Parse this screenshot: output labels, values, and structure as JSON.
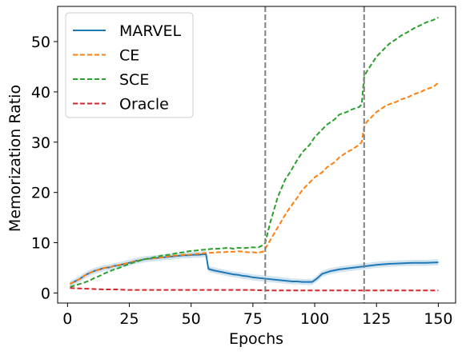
{
  "chart_data": {
    "type": "line",
    "xlabel": "Epochs",
    "ylabel": "Memorization Ratio",
    "xlim": [
      -4,
      157
    ],
    "ylim": [
      -2,
      57
    ],
    "xticks": [
      0,
      25,
      50,
      75,
      100,
      125,
      150
    ],
    "yticks": [
      0,
      10,
      20,
      30,
      40,
      50
    ],
    "grid": false,
    "legend_position": "top-left",
    "vlines": [
      80,
      120
    ],
    "series": [
      {
        "name": "MARVEL",
        "style": "solid",
        "color": "#1f77b4",
        "band": 0.6,
        "x": [
          1,
          3,
          5,
          7,
          9,
          11,
          13,
          15,
          17,
          19,
          21,
          23,
          25,
          27,
          29,
          31,
          33,
          35,
          37,
          39,
          41,
          43,
          45,
          47,
          49,
          51,
          53,
          55,
          56,
          57,
          59,
          61,
          63,
          65,
          67,
          69,
          71,
          73,
          75,
          77,
          79,
          81,
          83,
          85,
          87,
          89,
          91,
          93,
          95,
          97,
          99,
          101,
          103,
          106,
          110,
          115,
          120,
          125,
          130,
          135,
          140,
          145,
          150
        ],
        "y": [
          1.8,
          2.3,
          2.8,
          3.5,
          4.0,
          4.4,
          4.7,
          5.0,
          5.1,
          5.4,
          5.5,
          5.8,
          6.0,
          6.3,
          6.5,
          6.7,
          6.8,
          6.9,
          7.0,
          7.1,
          7.2,
          7.3,
          7.4,
          7.5,
          7.5,
          7.6,
          7.6,
          7.7,
          7.8,
          4.8,
          4.5,
          4.3,
          4.1,
          3.9,
          3.7,
          3.6,
          3.4,
          3.3,
          3.1,
          3.0,
          2.9,
          2.8,
          2.7,
          2.6,
          2.5,
          2.4,
          2.3,
          2.3,
          2.2,
          2.2,
          2.2,
          2.9,
          3.8,
          4.3,
          4.7,
          5.0,
          5.3,
          5.6,
          5.8,
          5.9,
          6.0,
          6.0,
          6.1
        ]
      },
      {
        "name": "CE",
        "style": "dashed",
        "color": "#ff7f0e",
        "x": [
          1,
          3,
          5,
          7,
          9,
          11,
          13,
          15,
          17,
          19,
          21,
          23,
          25,
          27,
          29,
          31,
          33,
          35,
          37,
          39,
          41,
          43,
          45,
          47,
          49,
          51,
          53,
          55,
          57,
          59,
          61,
          63,
          65,
          67,
          69,
          71,
          73,
          75,
          77,
          79,
          80,
          82,
          85,
          88,
          90,
          93,
          95,
          98,
          100,
          103,
          105,
          108,
          110,
          113,
          115,
          118,
          119,
          120,
          121,
          123,
          125,
          128,
          130,
          133,
          135,
          138,
          140,
          143,
          145,
          148,
          150
        ],
        "y": [
          1.8,
          2.3,
          2.8,
          3.5,
          4.0,
          4.4,
          4.7,
          5.0,
          5.1,
          5.4,
          5.6,
          5.8,
          6.0,
          6.3,
          6.5,
          6.7,
          6.8,
          6.9,
          7.0,
          7.1,
          7.3,
          7.4,
          7.5,
          7.6,
          7.6,
          7.7,
          7.8,
          7.9,
          8.0,
          8.0,
          8.1,
          8.1,
          8.2,
          8.2,
          8.3,
          8.2,
          8.1,
          8.1,
          8.0,
          8.2,
          8.8,
          10.5,
          13.0,
          15.5,
          17.0,
          19.0,
          20.5,
          22.0,
          23.0,
          24.0,
          25.0,
          26.0,
          27.0,
          28.0,
          28.5,
          29.5,
          30.0,
          33.0,
          34.0,
          35.0,
          36.0,
          37.0,
          37.5,
          38.0,
          38.5,
          39.0,
          39.5,
          40.0,
          40.5,
          41.0,
          41.8
        ]
      },
      {
        "name": "SCE",
        "style": "dashed",
        "color": "#2ca02c",
        "x": [
          1,
          3,
          5,
          7,
          9,
          11,
          13,
          15,
          17,
          19,
          21,
          23,
          25,
          27,
          29,
          31,
          33,
          35,
          37,
          39,
          41,
          43,
          45,
          47,
          49,
          51,
          53,
          55,
          57,
          59,
          61,
          63,
          65,
          67,
          69,
          71,
          73,
          75,
          77,
          79,
          80,
          82,
          85,
          88,
          90,
          93,
          95,
          98,
          100,
          103,
          105,
          108,
          110,
          113,
          115,
          118,
          119,
          120,
          121,
          123,
          125,
          128,
          130,
          133,
          135,
          138,
          140,
          143,
          145,
          148,
          150
        ],
        "y": [
          1.2,
          1.5,
          1.8,
          2.1,
          2.5,
          3.0,
          3.4,
          3.9,
          4.3,
          4.7,
          5.0,
          5.4,
          5.8,
          6.1,
          6.4,
          6.7,
          6.9,
          7.1,
          7.3,
          7.5,
          7.6,
          7.8,
          8.0,
          8.1,
          8.3,
          8.4,
          8.5,
          8.6,
          8.7,
          8.8,
          8.8,
          8.9,
          9.0,
          8.8,
          9.0,
          8.9,
          9.0,
          9.1,
          9.0,
          9.5,
          10.0,
          14.0,
          19.0,
          22.5,
          24.0,
          26.5,
          28.0,
          29.5,
          31.0,
          32.5,
          33.5,
          34.5,
          35.5,
          36.0,
          36.5,
          37.0,
          37.5,
          43.0,
          44.0,
          45.5,
          47.0,
          48.5,
          49.5,
          50.5,
          51.2,
          52.0,
          52.6,
          53.3,
          53.8,
          54.3,
          54.8
        ]
      },
      {
        "name": "Oracle",
        "style": "dashed",
        "color": "#d62728",
        "x": [
          1,
          5,
          10,
          15,
          20,
          25,
          30,
          35,
          40,
          45,
          50,
          55,
          60,
          65,
          70,
          75,
          80,
          85,
          90,
          95,
          100,
          110,
          120,
          130,
          140,
          150
        ],
        "y": [
          1.0,
          0.9,
          0.8,
          0.7,
          0.7,
          0.6,
          0.6,
          0.6,
          0.6,
          0.6,
          0.6,
          0.6,
          0.6,
          0.6,
          0.6,
          0.6,
          0.5,
          0.5,
          0.5,
          0.5,
          0.5,
          0.5,
          0.5,
          0.5,
          0.5,
          0.5
        ]
      }
    ]
  }
}
